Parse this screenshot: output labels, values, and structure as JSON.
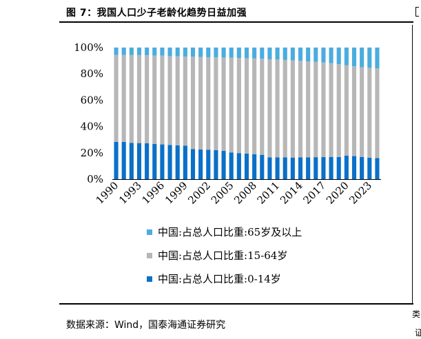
{
  "figure": {
    "title": "图 7：我国人口少子老龄化趋势日益加强",
    "source": "数据来源：Wind，国泰海通证券研究",
    "edge_text_1": "类",
    "edge_text_2": "证"
  },
  "colors": {
    "age_65_plus": "#4BACE0",
    "age_15_64": "#B7B7B7",
    "age_0_14": "#0A70C8"
  },
  "chart_data": {
    "type": "bar",
    "stacked": true,
    "title": "",
    "xlabel": "",
    "ylabel": "",
    "ylim": [
      0,
      100
    ],
    "y_ticks": [
      "0%",
      "20%",
      "40%",
      "60%",
      "80%",
      "100%"
    ],
    "x_tick_labels": [
      "1990",
      "1993",
      "1996",
      "1999",
      "2002",
      "2005",
      "2008",
      "2011",
      "2014",
      "2017",
      "2020",
      "2023"
    ],
    "categories": [
      "1990",
      "1991",
      "1992",
      "1993",
      "1994",
      "1995",
      "1996",
      "1997",
      "1998",
      "1999",
      "2000",
      "2001",
      "2002",
      "2003",
      "2004",
      "2005",
      "2006",
      "2007",
      "2008",
      "2009",
      "2010",
      "2011",
      "2012",
      "2013",
      "2014",
      "2015",
      "2016",
      "2017",
      "2018",
      "2019",
      "2020",
      "2021",
      "2022",
      "2023",
      "2024"
    ],
    "series": [
      {
        "name": "中国:占总人口比重:0-14岁",
        "color_key": "age_0_14",
        "values": [
          28.3,
          28.3,
          27.6,
          27.4,
          27.3,
          26.7,
          26.4,
          26.0,
          25.7,
          25.4,
          22.9,
          22.5,
          22.4,
          22.1,
          21.5,
          20.3,
          19.8,
          19.4,
          19.0,
          18.5,
          16.6,
          16.5,
          16.5,
          16.4,
          16.5,
          16.5,
          16.7,
          16.8,
          16.9,
          16.8,
          17.9,
          17.5,
          16.9,
          16.3,
          16.1
        ]
      },
      {
        "name": "中国:占总人口比重:15-64岁",
        "color_key": "age_15_64",
        "values": [
          66.1,
          66.1,
          66.7,
          66.9,
          66.9,
          67.2,
          67.5,
          67.5,
          67.6,
          67.7,
          70.1,
          70.4,
          70.3,
          70.4,
          70.9,
          72.0,
          72.3,
          72.5,
          72.7,
          73.0,
          74.5,
          74.4,
          74.1,
          73.9,
          73.4,
          73.0,
          72.5,
          71.8,
          71.2,
          70.6,
          68.6,
          68.3,
          68.2,
          68.3,
          68.0
        ]
      },
      {
        "name": "中国:占总人口比重:65岁及以上",
        "color_key": "age_65_plus",
        "values": [
          5.6,
          5.6,
          5.7,
          5.7,
          5.8,
          6.1,
          6.1,
          6.5,
          6.7,
          6.9,
          7.0,
          7.1,
          7.3,
          7.5,
          7.6,
          7.7,
          7.9,
          8.1,
          8.3,
          8.5,
          8.9,
          9.1,
          9.4,
          9.7,
          10.1,
          10.5,
          10.8,
          11.4,
          11.9,
          12.6,
          13.5,
          14.2,
          14.9,
          15.4,
          15.9
        ]
      }
    ],
    "legend": {
      "placement": "bottom",
      "entries": [
        "中国:占总人口比重:65岁及以上",
        "中国:占总人口比重:15-64岁",
        "中国:占总人口比重:0-14岁"
      ]
    }
  }
}
